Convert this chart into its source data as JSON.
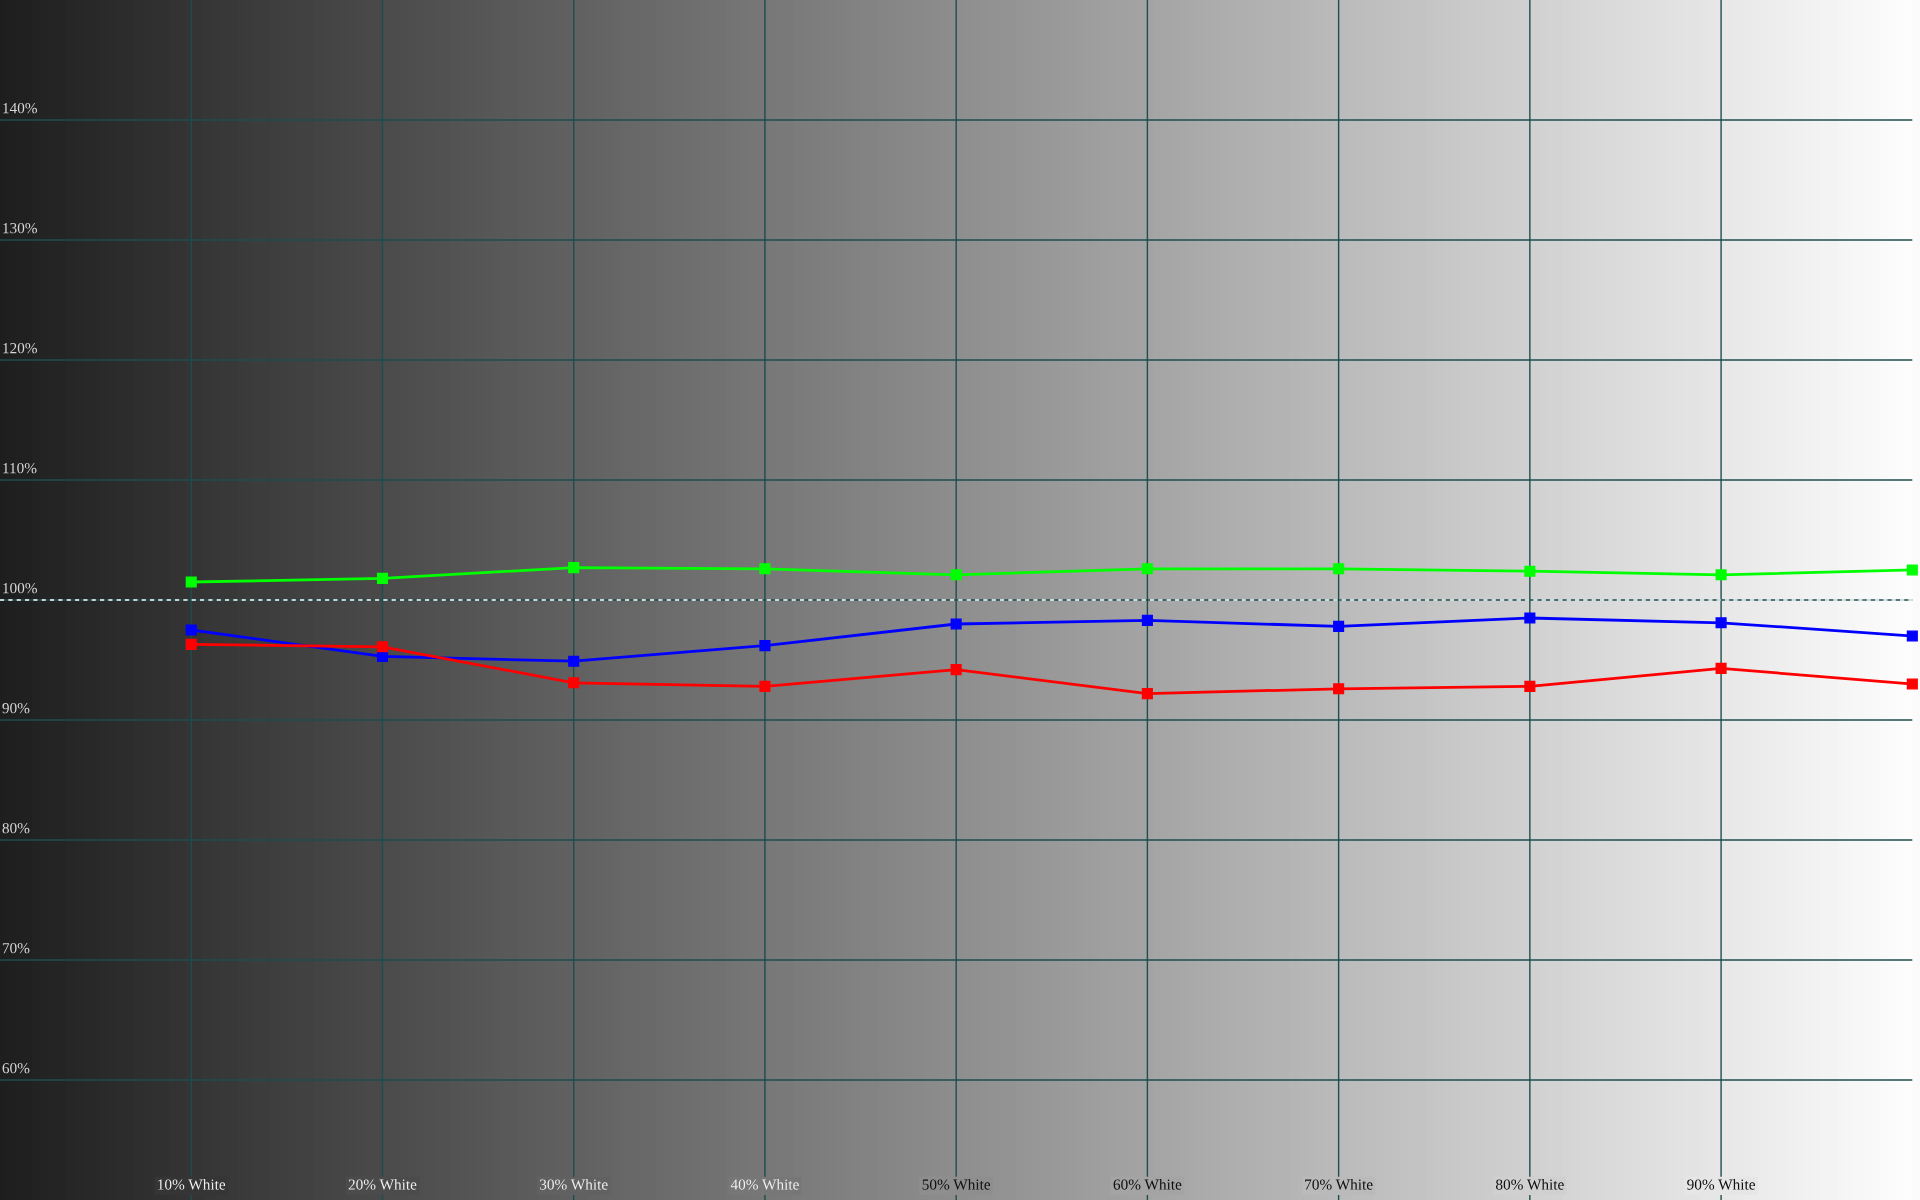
{
  "chart_data": {
    "type": "line",
    "x": [
      10,
      20,
      30,
      40,
      50,
      60,
      70,
      80,
      90,
      100
    ],
    "series": [
      {
        "color": "#00ff00",
        "values": [
          101.5,
          101.8,
          102.7,
          102.6,
          102.1,
          102.6,
          102.6,
          102.4,
          102.1,
          102.5
        ]
      },
      {
        "color": "#0000ff",
        "values": [
          97.5,
          95.3,
          94.9,
          96.2,
          98.0,
          98.3,
          97.8,
          98.5,
          98.1,
          97.0
        ]
      },
      {
        "color": "#ff0000",
        "values": [
          96.3,
          96.1,
          93.1,
          92.8,
          94.2,
          92.2,
          92.6,
          92.8,
          94.3,
          93.0
        ]
      }
    ],
    "xlim": [
      0,
      100
    ],
    "ylim": [
      50,
      150
    ],
    "xticks": [
      {
        "value": 10,
        "label": "10% White"
      },
      {
        "value": 20,
        "label": "20% White"
      },
      {
        "value": 30,
        "label": "30% White"
      },
      {
        "value": 40,
        "label": "40% White"
      },
      {
        "value": 50,
        "label": "50% White"
      },
      {
        "value": 60,
        "label": "60% White"
      },
      {
        "value": 70,
        "label": "70% White"
      },
      {
        "value": 80,
        "label": "80% White"
      },
      {
        "value": 90,
        "label": "90% White"
      }
    ],
    "yticks": [
      {
        "value": 60,
        "label": "60%"
      },
      {
        "value": 70,
        "label": "70%"
      },
      {
        "value": 80,
        "label": "80%"
      },
      {
        "value": 90,
        "label": "90%"
      },
      {
        "value": 110,
        "label": "110%"
      },
      {
        "value": 120,
        "label": "120%"
      },
      {
        "value": 130,
        "label": "130%"
      },
      {
        "value": 140,
        "label": "140%"
      },
      {
        "value": 100,
        "label": "100%"
      }
    ],
    "ref_lines": [
      {
        "axis": "y",
        "value": 100,
        "color": "#ffffff",
        "line_style": "dashed"
      }
    ],
    "grid": true,
    "marker": "square",
    "line_style": "solid",
    "legend": false
  }
}
